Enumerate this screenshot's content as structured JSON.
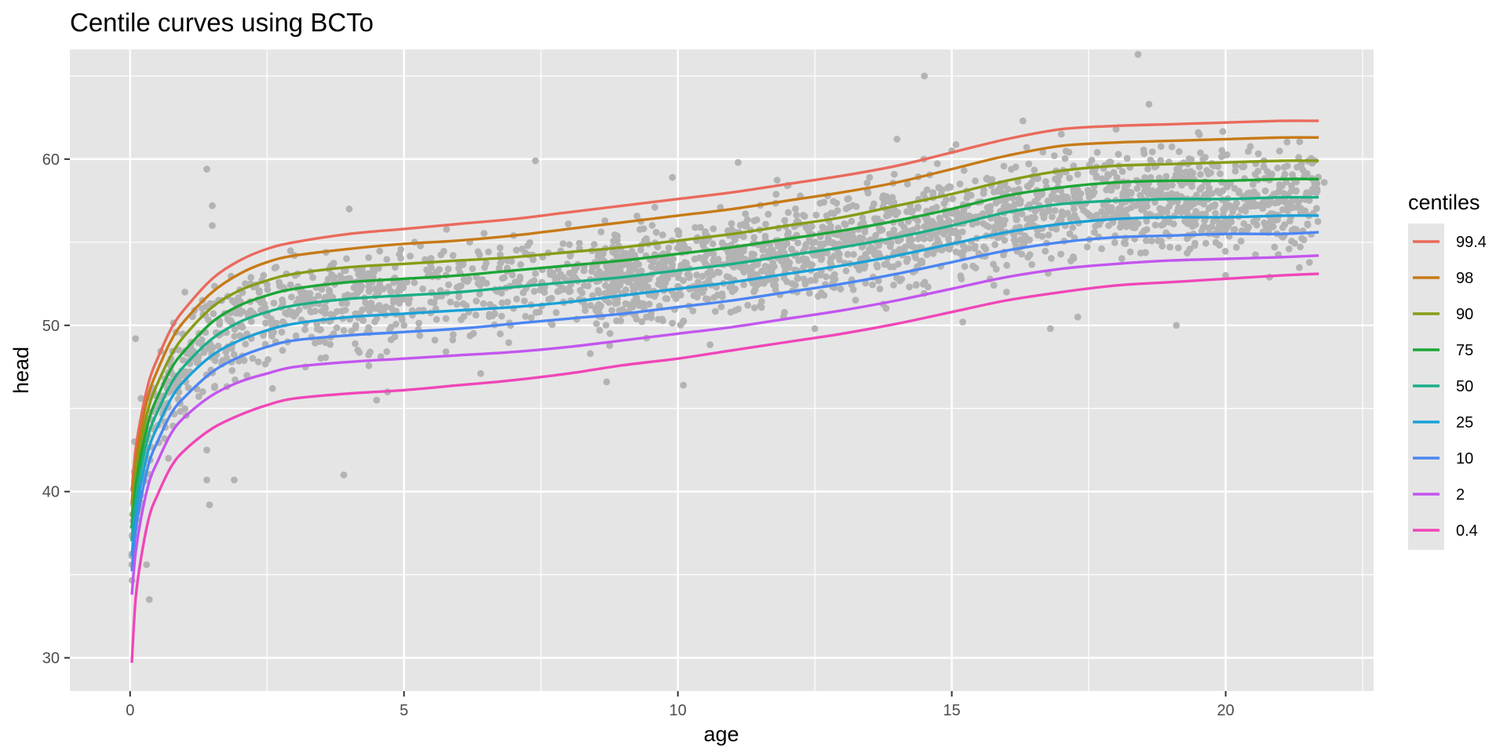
{
  "chart_data": {
    "type": "line",
    "title": "Centile curves using BCTo",
    "xlabel": "age",
    "ylabel": "head",
    "xlim": [
      -1.1,
      22.7
    ],
    "ylim": [
      28,
      66.6
    ],
    "x_ticks": [
      0,
      5,
      10,
      15,
      20
    ],
    "x_tick_labels": [
      "0",
      "5",
      "10",
      "15",
      "20"
    ],
    "y_ticks": [
      30,
      40,
      50,
      60
    ],
    "y_tick_labels": [
      "30",
      "40",
      "50",
      "60"
    ],
    "grid": true,
    "background": "#e5e5e5",
    "legend": {
      "title": "centiles",
      "position": "right"
    },
    "x": [
      0.03,
      0.1,
      0.2,
      0.35,
      0.5,
      0.75,
      1,
      1.5,
      2,
      2.5,
      3,
      4,
      5,
      6,
      7,
      8,
      9,
      10,
      11,
      12,
      13,
      14,
      15,
      16,
      17,
      18,
      19,
      20,
      21,
      21.7
    ],
    "series": [
      {
        "name": "99.4",
        "color": "#ea6a5c",
        "values": [
          40.0,
          42.5,
          44.5,
          46.7,
          48.0,
          49.8,
          51.0,
          52.8,
          53.9,
          54.6,
          55.0,
          55.5,
          55.8,
          56.1,
          56.4,
          56.8,
          57.2,
          57.6,
          58.0,
          58.5,
          59.0,
          59.6,
          60.4,
          61.2,
          61.8,
          62.0,
          62.1,
          62.2,
          62.3,
          62.3
        ]
      },
      {
        "name": "98",
        "color": "#c77a16",
        "values": [
          39.3,
          41.8,
          43.8,
          46.0,
          47.3,
          49.1,
          50.3,
          52.0,
          53.1,
          53.8,
          54.2,
          54.6,
          54.9,
          55.1,
          55.4,
          55.8,
          56.2,
          56.6,
          57.0,
          57.5,
          58.0,
          58.6,
          59.4,
          60.2,
          60.8,
          61.0,
          61.1,
          61.2,
          61.3,
          61.3
        ]
      },
      {
        "name": "90",
        "color": "#869c16",
        "values": [
          38.5,
          41.0,
          43.0,
          45.2,
          46.5,
          48.2,
          49.4,
          51.1,
          52.1,
          52.7,
          53.1,
          53.5,
          53.7,
          53.9,
          54.1,
          54.4,
          54.7,
          55.1,
          55.5,
          56.0,
          56.5,
          57.2,
          57.9,
          58.7,
          59.3,
          59.6,
          59.7,
          59.8,
          59.9,
          59.9
        ]
      },
      {
        "name": "75",
        "color": "#1ca636",
        "values": [
          37.8,
          40.2,
          42.2,
          44.4,
          45.7,
          47.4,
          48.5,
          50.2,
          51.2,
          51.8,
          52.2,
          52.6,
          52.8,
          53.0,
          53.3,
          53.6,
          53.9,
          54.3,
          54.7,
          55.2,
          55.7,
          56.3,
          57.0,
          57.8,
          58.3,
          58.6,
          58.7,
          58.7,
          58.8,
          58.8
        ]
      },
      {
        "name": "50",
        "color": "#1aaf88",
        "values": [
          37.0,
          39.4,
          41.4,
          43.6,
          44.8,
          46.5,
          47.6,
          49.2,
          50.2,
          50.8,
          51.2,
          51.6,
          51.8,
          52.0,
          52.3,
          52.6,
          52.9,
          53.3,
          53.7,
          54.2,
          54.7,
          55.3,
          56.0,
          56.8,
          57.3,
          57.5,
          57.6,
          57.6,
          57.7,
          57.7
        ]
      },
      {
        "name": "25",
        "color": "#1aa1d6",
        "values": [
          36.1,
          38.5,
          40.5,
          42.7,
          43.9,
          45.6,
          46.7,
          48.2,
          49.1,
          49.7,
          50.1,
          50.5,
          50.7,
          50.9,
          51.1,
          51.4,
          51.8,
          52.2,
          52.6,
          53.1,
          53.6,
          54.2,
          54.9,
          55.6,
          56.1,
          56.4,
          56.5,
          56.5,
          56.6,
          56.6
        ]
      },
      {
        "name": "10",
        "color": "#4b86f2",
        "values": [
          35.2,
          37.6,
          39.6,
          41.8,
          43.0,
          44.7,
          45.7,
          47.2,
          48.1,
          48.7,
          49.1,
          49.4,
          49.6,
          49.8,
          50.1,
          50.4,
          50.7,
          51.1,
          51.5,
          52.0,
          52.5,
          53.1,
          53.8,
          54.5,
          55.0,
          55.3,
          55.4,
          55.5,
          55.5,
          55.6
        ]
      },
      {
        "name": "2",
        "color": "#c356ee",
        "values": [
          33.8,
          36.3,
          38.4,
          40.6,
          41.8,
          43.5,
          44.5,
          45.8,
          46.6,
          47.1,
          47.5,
          47.8,
          48.0,
          48.2,
          48.4,
          48.7,
          49.1,
          49.5,
          49.9,
          50.4,
          50.9,
          51.5,
          52.2,
          52.9,
          53.4,
          53.7,
          53.9,
          54.0,
          54.1,
          54.2
        ]
      },
      {
        "name": "0.4",
        "color": "#f046b8",
        "values": [
          29.7,
          33.5,
          36.0,
          38.5,
          39.8,
          41.5,
          42.5,
          43.8,
          44.6,
          45.2,
          45.6,
          45.9,
          46.1,
          46.4,
          46.7,
          47.1,
          47.6,
          48.0,
          48.5,
          49.0,
          49.5,
          50.1,
          50.8,
          51.5,
          52.0,
          52.4,
          52.6,
          52.8,
          53.0,
          53.1
        ]
      }
    ],
    "scatter": {
      "color": "#b3b3b3",
      "points": [
        [
          0.08,
          43.0
        ],
        [
          0.1,
          49.2
        ],
        [
          0.2,
          45.6
        ],
        [
          0.3,
          35.6
        ],
        [
          0.35,
          33.5
        ],
        [
          0.4,
          44.8
        ],
        [
          0.7,
          42.0
        ],
        [
          0.9,
          46.6
        ],
        [
          1.4,
          59.4
        ],
        [
          1.5,
          57.2
        ],
        [
          1.5,
          56.0
        ],
        [
          1.4,
          42.5
        ],
        [
          1.45,
          39.2
        ],
        [
          1.9,
          40.7
        ],
        [
          1.4,
          40.7
        ],
        [
          4.0,
          57.0
        ],
        [
          3.9,
          41.0
        ],
        [
          4.5,
          45.5
        ],
        [
          4.7,
          46.0
        ],
        [
          5.0,
          50.0
        ],
        [
          7.4,
          59.9
        ],
        [
          8.7,
          46.6
        ],
        [
          9.9,
          58.9
        ],
        [
          10.1,
          46.4
        ],
        [
          11.1,
          59.8
        ],
        [
          14.0,
          61.2
        ],
        [
          14.5,
          65.0
        ],
        [
          16.3,
          62.3
        ],
        [
          16.8,
          49.8
        ],
        [
          17.3,
          50.5
        ],
        [
          18.4,
          66.3
        ],
        [
          18.6,
          63.3
        ],
        [
          19.1,
          50.0
        ],
        [
          20.8,
          52.9
        ],
        [
          21.3,
          57.1
        ],
        [
          21.8,
          58.6
        ],
        [
          1.0,
          52.0
        ],
        [
          1.2,
          48.0
        ],
        [
          2.2,
          52.5
        ],
        [
          2.6,
          46.2
        ],
        [
          3.0,
          54.2
        ],
        [
          3.2,
          47.5
        ],
        [
          6.2,
          55.0
        ],
        [
          6.4,
          47.1
        ],
        [
          7.0,
          55.4
        ],
        [
          8.0,
          56.1
        ],
        [
          8.4,
          48.3
        ],
        [
          12.0,
          58.4
        ],
        [
          12.5,
          49.8
        ],
        [
          13.5,
          58.9
        ],
        [
          15.0,
          60.5
        ],
        [
          15.2,
          50.2
        ],
        [
          16.0,
          52.0
        ],
        [
          17.0,
          61.5
        ],
        [
          18.0,
          61.8
        ],
        [
          19.5,
          61.6
        ],
        [
          20.0,
          53.0
        ]
      ]
    }
  }
}
